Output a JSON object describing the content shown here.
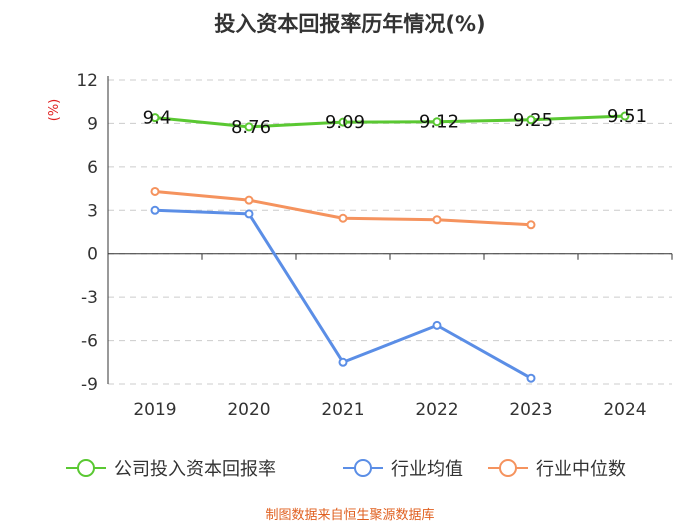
{
  "chart_data": {
    "type": "line",
    "title": "投入资本回报率历年情况(%)",
    "ylabel": "(%)",
    "xlabel": "",
    "categories": [
      "2019",
      "2020",
      "2021",
      "2022",
      "2023",
      "2024"
    ],
    "ylim": [
      -9,
      12
    ],
    "yticks": [
      12,
      9,
      6,
      3,
      0,
      -3,
      -6,
      -9
    ],
    "grid": true,
    "legend_position": "bottom",
    "series": [
      {
        "name": "公司投入资本回报率",
        "color": "#5ac832",
        "values": [
          9.4,
          8.76,
          9.09,
          9.12,
          9.25,
          9.51
        ],
        "labels": [
          "9.4",
          "8.76",
          "9.09",
          "9.12",
          "9.25",
          "9.51"
        ]
      },
      {
        "name": "行业均值",
        "color": "#5b8ee6",
        "values": [
          3.0,
          2.75,
          -7.5,
          -4.95,
          -8.6,
          null
        ]
      },
      {
        "name": "行业中位数",
        "color": "#f5935e",
        "values": [
          4.3,
          3.7,
          2.45,
          2.35,
          2.0,
          null
        ]
      }
    ]
  },
  "source": "制图数据来自恒生聚源数据库"
}
